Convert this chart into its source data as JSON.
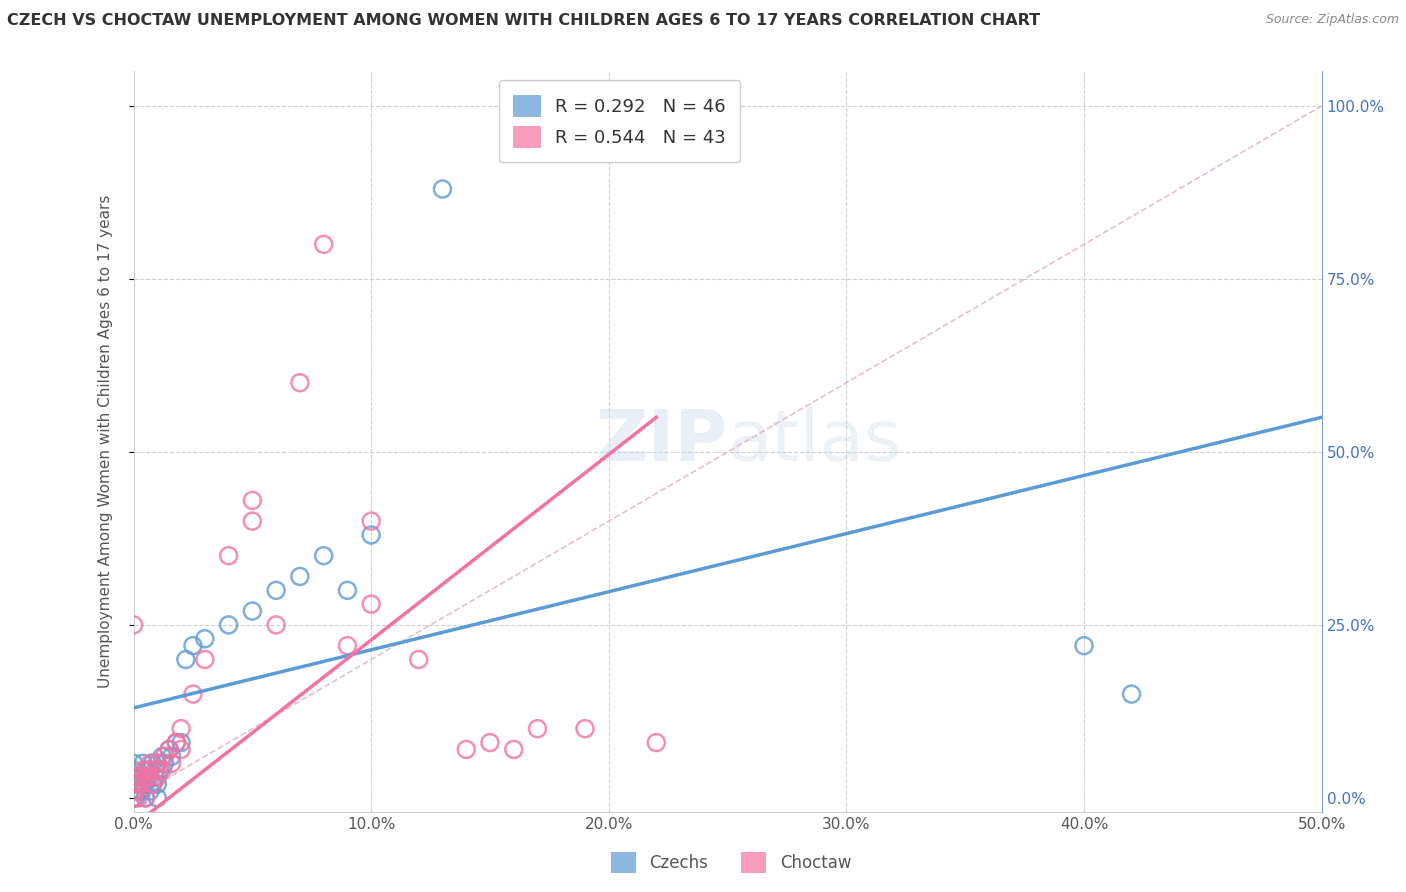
{
  "title": "CZECH VS CHOCTAW UNEMPLOYMENT AMONG WOMEN WITH CHILDREN AGES 6 TO 17 YEARS CORRELATION CHART",
  "source": "Source: ZipAtlas.com",
  "ylabel": "Unemployment Among Women with Children Ages 6 to 17 years",
  "xlim": [
    0.0,
    0.5
  ],
  "ylim": [
    -0.02,
    1.05
  ],
  "plot_ylim": [
    0.0,
    1.0
  ],
  "xticks": [
    0.0,
    0.1,
    0.2,
    0.3,
    0.4,
    0.5
  ],
  "xtick_labels": [
    "0.0%",
    "10.0%",
    "20.0%",
    "30.0%",
    "40.0%",
    "50.0%"
  ],
  "yticks_right": [
    0.0,
    0.25,
    0.5,
    0.75,
    1.0
  ],
  "ytick_labels_right": [
    "0.0%",
    "25.0%",
    "50.0%",
    "75.0%",
    "100.0%"
  ],
  "czechs_color": "#5b9bd5",
  "choctaw_color": "#f472a0",
  "czechs_R": 0.292,
  "czechs_N": 46,
  "choctaw_R": 0.544,
  "choctaw_N": 43,
  "czechs_trend_x0": 0.0,
  "czechs_trend_y0": 0.13,
  "czechs_trend_x1": 0.5,
  "czechs_trend_y1": 0.55,
  "choctaw_trend_x0": 0.0,
  "choctaw_trend_y0": -0.04,
  "choctaw_trend_x1": 0.22,
  "choctaw_trend_y1": 0.55,
  "czechs_x": [
    0.0,
    0.0,
    0.0,
    0.0,
    0.0,
    0.0,
    0.001,
    0.001,
    0.002,
    0.002,
    0.003,
    0.003,
    0.004,
    0.004,
    0.005,
    0.005,
    0.005,
    0.006,
    0.007,
    0.007,
    0.008,
    0.008,
    0.009,
    0.01,
    0.01,
    0.01,
    0.011,
    0.012,
    0.013,
    0.015,
    0.016,
    0.018,
    0.02,
    0.022,
    0.025,
    0.03,
    0.04,
    0.05,
    0.06,
    0.07,
    0.08,
    0.09,
    0.1,
    0.13,
    0.4,
    0.42
  ],
  "czechs_y": [
    0.0,
    0.01,
    0.02,
    0.03,
    0.04,
    0.05,
    0.0,
    0.02,
    0.01,
    0.03,
    0.01,
    0.03,
    0.02,
    0.05,
    0.0,
    0.02,
    0.04,
    0.03,
    0.01,
    0.04,
    0.02,
    0.05,
    0.03,
    0.0,
    0.02,
    0.05,
    0.04,
    0.06,
    0.05,
    0.07,
    0.06,
    0.08,
    0.08,
    0.2,
    0.22,
    0.23,
    0.25,
    0.27,
    0.3,
    0.32,
    0.35,
    0.3,
    0.38,
    0.88,
    0.22,
    0.15
  ],
  "choctaw_x": [
    0.0,
    0.0,
    0.0,
    0.001,
    0.001,
    0.002,
    0.002,
    0.003,
    0.004,
    0.005,
    0.005,
    0.006,
    0.007,
    0.007,
    0.008,
    0.009,
    0.01,
    0.01,
    0.012,
    0.013,
    0.015,
    0.016,
    0.018,
    0.02,
    0.02,
    0.025,
    0.03,
    0.04,
    0.05,
    0.05,
    0.06,
    0.07,
    0.08,
    0.09,
    0.1,
    0.1,
    0.12,
    0.14,
    0.15,
    0.16,
    0.17,
    0.19,
    0.22
  ],
  "choctaw_y": [
    0.0,
    0.02,
    0.25,
    0.01,
    0.03,
    0.0,
    0.03,
    0.02,
    0.04,
    0.0,
    0.03,
    0.04,
    0.03,
    0.05,
    0.02,
    0.04,
    0.03,
    0.05,
    0.04,
    0.06,
    0.07,
    0.05,
    0.08,
    0.07,
    0.1,
    0.15,
    0.2,
    0.35,
    0.4,
    0.43,
    0.25,
    0.6,
    0.8,
    0.22,
    0.28,
    0.4,
    0.2,
    0.07,
    0.08,
    0.07,
    0.1,
    0.1,
    0.08
  ],
  "watermark_zip": "ZIP",
  "watermark_atlas": "atlas",
  "background_color": "#ffffff",
  "grid_color": "#d0d0d0",
  "ref_line_color": "#c8c8c8"
}
